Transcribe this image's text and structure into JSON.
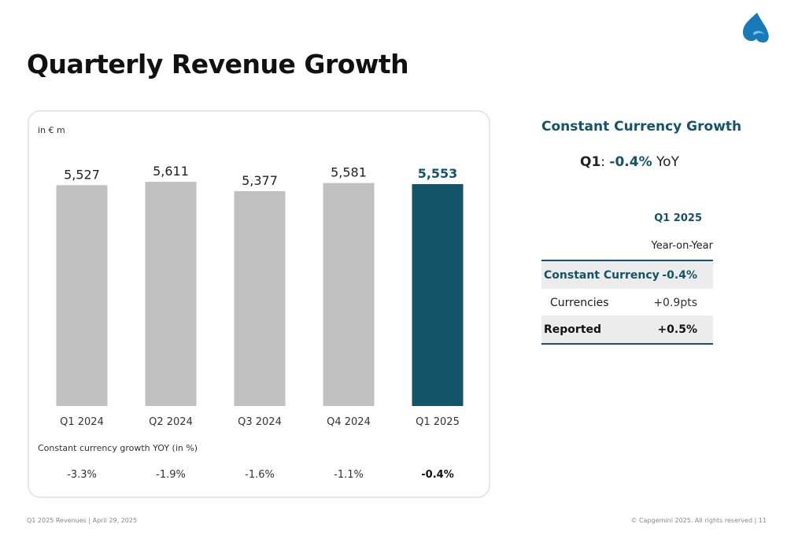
{
  "page_title": "Quarterly Revenue Growth",
  "colors": {
    "bar_default": "#c0c0c0",
    "bar_highlight": "#135468",
    "accent": "#135468",
    "logo": "#1a79b8"
  },
  "logo_icon": "spade-icon",
  "chart_data": {
    "type": "bar",
    "unit_label": "in € m",
    "categories": [
      "Q1 2024",
      "Q2 2024",
      "Q3 2024",
      "Q4 2024",
      "Q1 2025"
    ],
    "values": [
      5527,
      5611,
      5377,
      5581,
      5553
    ],
    "value_labels": [
      "5,527",
      "5,611",
      "5,377",
      "5,581",
      "5,553"
    ],
    "highlight_index": 4,
    "ylim": [
      0,
      5750
    ],
    "grid": false,
    "growth_caption": "Constant currency growth YOY (in %)",
    "growth_values": [
      "-3.3%",
      "-1.9%",
      "-1.6%",
      "-1.1%",
      "-0.4%"
    ]
  },
  "constant_currency": {
    "title": "Constant Currency Growth",
    "quarter": "Q1",
    "separator": ":",
    "value": "-0.4%",
    "suffix": "YoY"
  },
  "table": {
    "column_quarter": "Q1 2025",
    "column_sub": "Year-on-Year",
    "rows": [
      {
        "label": "Constant Currency",
        "value": "-0.4%"
      },
      {
        "label": "Currencies",
        "value": "+0.9pts"
      },
      {
        "label": "Reported",
        "value": "+0.5%"
      }
    ]
  },
  "footer": {
    "left": "Q1 2025 Revenues  |  April 29, 2025",
    "right": "© Capgemini 2025. All rights reserved  |   11"
  }
}
